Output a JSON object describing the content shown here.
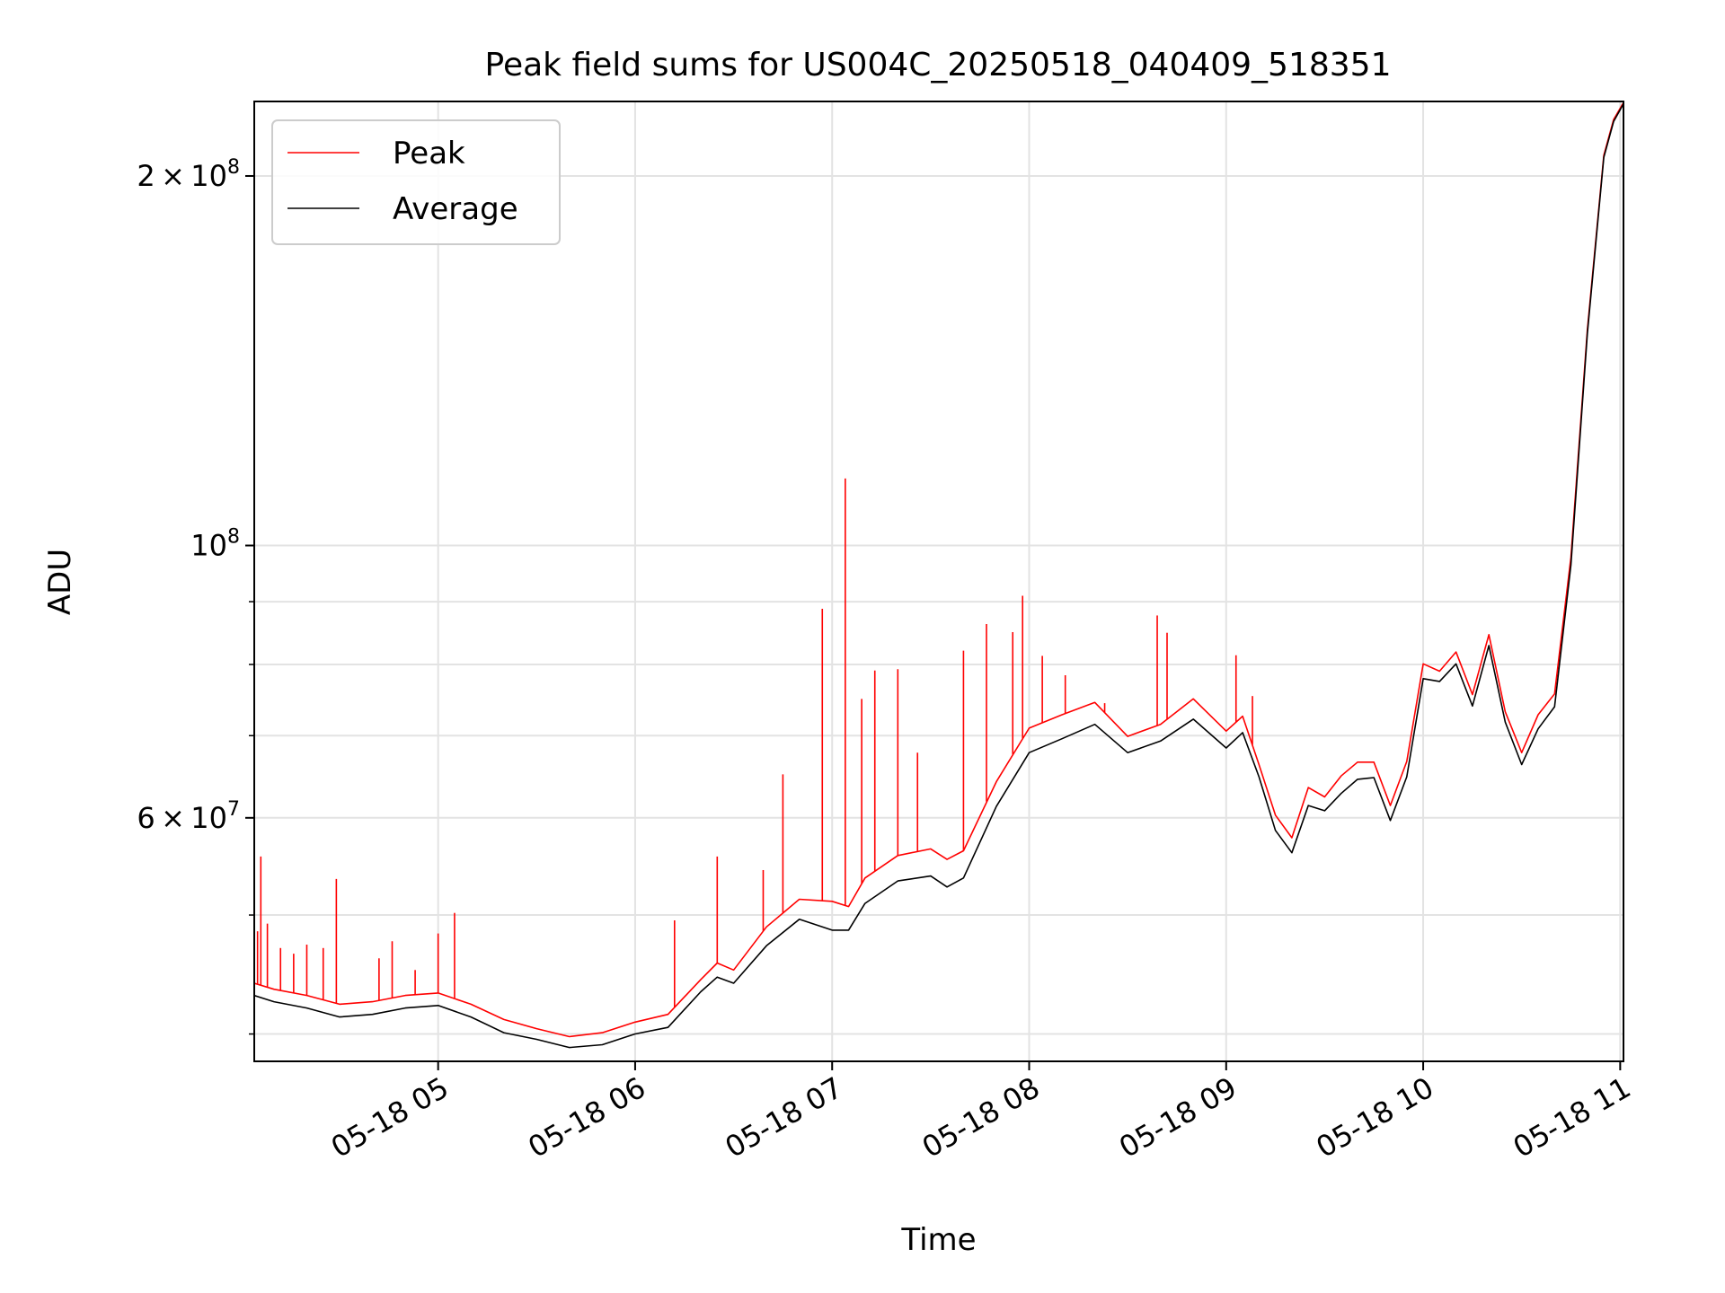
{
  "chart_data": {
    "type": "line",
    "title": "Peak field sums for US004C_20250518_040409_518351",
    "xlabel": "Time",
    "ylabel": "ADU",
    "yscale": "log",
    "grid": true,
    "legend_placement": "top-left",
    "xlim": [
      "2025-05-18 04:04",
      "2025-05-18 11:01"
    ],
    "ylim": [
      38000000,
      230000000
    ],
    "x_ticks": [
      {
        "value": "2025-05-18 05:00",
        "label": "05-18 05"
      },
      {
        "value": "2025-05-18 06:00",
        "label": "05-18 06"
      },
      {
        "value": "2025-05-18 07:00",
        "label": "05-18 07"
      },
      {
        "value": "2025-05-18 08:00",
        "label": "05-18 08"
      },
      {
        "value": "2025-05-18 09:00",
        "label": "05-18 09"
      },
      {
        "value": "2025-05-18 10:00",
        "label": "05-18 10"
      },
      {
        "value": "2025-05-18 11:00",
        "label": "05-18 11"
      }
    ],
    "y_major_ticks": [
      {
        "value": 60000000,
        "mantissa": "6",
        "exponent": "7"
      },
      {
        "value": 100000000,
        "mantissa": "",
        "exponent": "8"
      },
      {
        "value": 200000000,
        "mantissa": "2",
        "exponent": "8"
      }
    ],
    "y_minor_ticks": [
      40000000,
      50000000,
      70000000,
      80000000,
      90000000
    ],
    "series": [
      {
        "name": "Average",
        "color": "#000000",
        "x": [
          "2025-05-18 04:04",
          "2025-05-18 04:10",
          "2025-05-18 04:20",
          "2025-05-18 04:30",
          "2025-05-18 04:40",
          "2025-05-18 04:50",
          "2025-05-18 05:00",
          "2025-05-18 05:10",
          "2025-05-18 05:20",
          "2025-05-18 05:30",
          "2025-05-18 05:40",
          "2025-05-18 05:50",
          "2025-05-18 06:00",
          "2025-05-18 06:10",
          "2025-05-18 06:20",
          "2025-05-18 06:25",
          "2025-05-18 06:30",
          "2025-05-18 06:40",
          "2025-05-18 06:50",
          "2025-05-18 07:00",
          "2025-05-18 07:05",
          "2025-05-18 07:10",
          "2025-05-18 07:20",
          "2025-05-18 07:30",
          "2025-05-18 07:35",
          "2025-05-18 07:40",
          "2025-05-18 07:50",
          "2025-05-18 08:00",
          "2025-05-18 08:10",
          "2025-05-18 08:20",
          "2025-05-18 08:30",
          "2025-05-18 08:40",
          "2025-05-18 08:50",
          "2025-05-18 09:00",
          "2025-05-18 09:05",
          "2025-05-18 09:10",
          "2025-05-18 09:15",
          "2025-05-18 09:20",
          "2025-05-18 09:25",
          "2025-05-18 09:30",
          "2025-05-18 09:35",
          "2025-05-18 09:40",
          "2025-05-18 09:45",
          "2025-05-18 09:50",
          "2025-05-18 09:55",
          "2025-05-18 10:00",
          "2025-05-18 10:05",
          "2025-05-18 10:10",
          "2025-05-18 10:15",
          "2025-05-18 10:20",
          "2025-05-18 10:25",
          "2025-05-18 10:30",
          "2025-05-18 10:35",
          "2025-05-18 10:40",
          "2025-05-18 10:45",
          "2025-05-18 10:50",
          "2025-05-18 10:55",
          "2025-05-18 10:58",
          "2025-05-18 11:01"
        ],
        "y": [
          43000000,
          42500000,
          42000000,
          41300000,
          41500000,
          42000000,
          42200000,
          41300000,
          40100000,
          39600000,
          39000000,
          39200000,
          40000000,
          40500000,
          43300000,
          44500000,
          44000000,
          47200000,
          49600000,
          48600000,
          48600000,
          51100000,
          53300000,
          53800000,
          52700000,
          53600000,
          61300000,
          67800000,
          69600000,
          71500000,
          67800000,
          69300000,
          72200000,
          68400000,
          70400000,
          64800000,
          58600000,
          56200000,
          61400000,
          60800000,
          62800000,
          64500000,
          64700000,
          59700000,
          64800000,
          77900000,
          77500000,
          80100000,
          74000000,
          82900000,
          71800000,
          66300000,
          70900000,
          73900000,
          96400000,
          148800000,
          207100000,
          221500000,
          229000000
        ]
      },
      {
        "name": "Peak",
        "color": "#ff0000",
        "x": [
          "2025-05-18 04:04",
          "2025-05-18 04:10",
          "2025-05-18 04:20",
          "2025-05-18 04:30",
          "2025-05-18 04:40",
          "2025-05-18 04:50",
          "2025-05-18 05:00",
          "2025-05-18 05:10",
          "2025-05-18 05:20",
          "2025-05-18 05:30",
          "2025-05-18 05:40",
          "2025-05-18 05:50",
          "2025-05-18 06:00",
          "2025-05-18 06:10",
          "2025-05-18 06:20",
          "2025-05-18 06:25",
          "2025-05-18 06:30",
          "2025-05-18 06:40",
          "2025-05-18 06:50",
          "2025-05-18 07:00",
          "2025-05-18 07:05",
          "2025-05-18 07:10",
          "2025-05-18 07:20",
          "2025-05-18 07:30",
          "2025-05-18 07:35",
          "2025-05-18 07:40",
          "2025-05-18 07:50",
          "2025-05-18 08:00",
          "2025-05-18 08:10",
          "2025-05-18 08:20",
          "2025-05-18 08:30",
          "2025-05-18 08:40",
          "2025-05-18 08:50",
          "2025-05-18 09:00",
          "2025-05-18 09:05",
          "2025-05-18 09:10",
          "2025-05-18 09:15",
          "2025-05-18 09:20",
          "2025-05-18 09:25",
          "2025-05-18 09:30",
          "2025-05-18 09:35",
          "2025-05-18 09:40",
          "2025-05-18 09:45",
          "2025-05-18 09:50",
          "2025-05-18 09:55",
          "2025-05-18 10:00",
          "2025-05-18 10:05",
          "2025-05-18 10:10",
          "2025-05-18 10:15",
          "2025-05-18 10:20",
          "2025-05-18 10:25",
          "2025-05-18 10:30",
          "2025-05-18 10:35",
          "2025-05-18 10:40",
          "2025-05-18 10:45",
          "2025-05-18 10:50",
          "2025-05-18 10:55",
          "2025-05-18 10:58",
          "2025-05-18 11:01"
        ],
        "y": [
          44000000,
          43500000,
          43000000,
          42300000,
          42500000,
          43000000,
          43200000,
          42300000,
          41100000,
          40400000,
          39800000,
          40100000,
          40900000,
          41500000,
          44300000,
          45700000,
          45100000,
          48900000,
          51500000,
          51300000,
          50800000,
          53600000,
          55900000,
          56600000,
          55500000,
          56400000,
          64200000,
          71000000,
          72800000,
          74500000,
          69900000,
          71500000,
          75000000,
          70600000,
          72600000,
          66300000,
          60300000,
          57800000,
          63500000,
          62400000,
          64900000,
          66600000,
          66600000,
          61400000,
          66700000,
          80100000,
          79000000,
          81900000,
          75600000,
          84600000,
          73200000,
          67800000,
          72800000,
          75700000,
          97800000,
          149900000,
          207900000,
          222300000,
          229500000
        ],
        "spikes": [
          {
            "x": "2025-05-18 04:05",
            "y": 48500000
          },
          {
            "x": "2025-05-18 04:06",
            "y": 55800000
          },
          {
            "x": "2025-05-18 04:08",
            "y": 49200000
          },
          {
            "x": "2025-05-18 04:12",
            "y": 47000000
          },
          {
            "x": "2025-05-18 04:16",
            "y": 46500000
          },
          {
            "x": "2025-05-18 04:20",
            "y": 47300000
          },
          {
            "x": "2025-05-18 04:25",
            "y": 47000000
          },
          {
            "x": "2025-05-18 04:29",
            "y": 53500000
          },
          {
            "x": "2025-05-18 04:42",
            "y": 46100000
          },
          {
            "x": "2025-05-18 04:46",
            "y": 47600000
          },
          {
            "x": "2025-05-18 04:53",
            "y": 45100000
          },
          {
            "x": "2025-05-18 05:00",
            "y": 48300000
          },
          {
            "x": "2025-05-18 05:05",
            "y": 50200000
          },
          {
            "x": "2025-05-18 06:12",
            "y": 49500000
          },
          {
            "x": "2025-05-18 06:25",
            "y": 55800000
          },
          {
            "x": "2025-05-18 06:39",
            "y": 54400000
          },
          {
            "x": "2025-05-18 06:45",
            "y": 65100000
          },
          {
            "x": "2025-05-18 06:57",
            "y": 88800000
          },
          {
            "x": "2025-05-18 07:04",
            "y": 113400000
          },
          {
            "x": "2025-05-18 07:09",
            "y": 75000000
          },
          {
            "x": "2025-05-18 07:13",
            "y": 79100000
          },
          {
            "x": "2025-05-18 07:20",
            "y": 79300000
          },
          {
            "x": "2025-05-18 07:26",
            "y": 67800000
          },
          {
            "x": "2025-05-18 07:40",
            "y": 82100000
          },
          {
            "x": "2025-05-18 07:47",
            "y": 86300000
          },
          {
            "x": "2025-05-18 07:55",
            "y": 85000000
          },
          {
            "x": "2025-05-18 07:58",
            "y": 91000000
          },
          {
            "x": "2025-05-18 08:04",
            "y": 81300000
          },
          {
            "x": "2025-05-18 08:11",
            "y": 78400000
          },
          {
            "x": "2025-05-18 08:23",
            "y": 74400000
          },
          {
            "x": "2025-05-18 08:39",
            "y": 87700000
          },
          {
            "x": "2025-05-18 08:42",
            "y": 84900000
          },
          {
            "x": "2025-05-18 09:03",
            "y": 81400000
          },
          {
            "x": "2025-05-18 09:08",
            "y": 75400000
          }
        ]
      }
    ]
  }
}
